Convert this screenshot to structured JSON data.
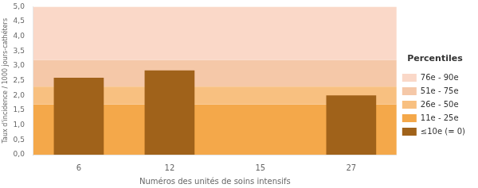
{
  "chart_data": {
    "type": "bar",
    "xlabel": "Numéros des unités de soins intensifs",
    "ylabel": "Taux d'incidence / 1000 jours-cathéters",
    "categories": [
      "6",
      "12",
      "15",
      "27"
    ],
    "series": [
      {
        "name": "≤10e (= 0)",
        "color": "#A0621A",
        "values": [
          2.6,
          2.85,
          0,
          2.0
        ]
      }
    ],
    "bands": [
      {
        "name": "11e - 25e",
        "from": 0.0,
        "to": 1.7,
        "color": "#F4A84A"
      },
      {
        "name": "26e - 50e",
        "from": 1.7,
        "to": 2.3,
        "color": "#F8C080"
      },
      {
        "name": "51e - 75e",
        "from": 2.3,
        "to": 3.2,
        "color": "#F5C8A8"
      },
      {
        "name": "76e - 90e",
        "from": 3.2,
        "to": 5.0,
        "color": "#FAD8C8"
      }
    ],
    "legend_title": "Percentiles",
    "legend": "right",
    "ylim": [
      0,
      5.0
    ],
    "yticks": [
      {
        "value": 0.0,
        "label": "0,0"
      },
      {
        "value": 0.5,
        "label": "0,5"
      },
      {
        "value": 1.0,
        "label": "1,0"
      },
      {
        "value": 1.5,
        "label": "1,5"
      },
      {
        "value": 2.0,
        "label": "2,0"
      },
      {
        "value": 2.5,
        "label": "2,5"
      },
      {
        "value": 3.0,
        "label": "3,0"
      },
      {
        "value": 3.5,
        "label": "3,5"
      },
      {
        "value": 4.0,
        "label": "4,0"
      },
      {
        "value": 4.5,
        "label": "4,5"
      },
      {
        "value": 5.0,
        "label": "5,0"
      }
    ],
    "grid": false
  }
}
